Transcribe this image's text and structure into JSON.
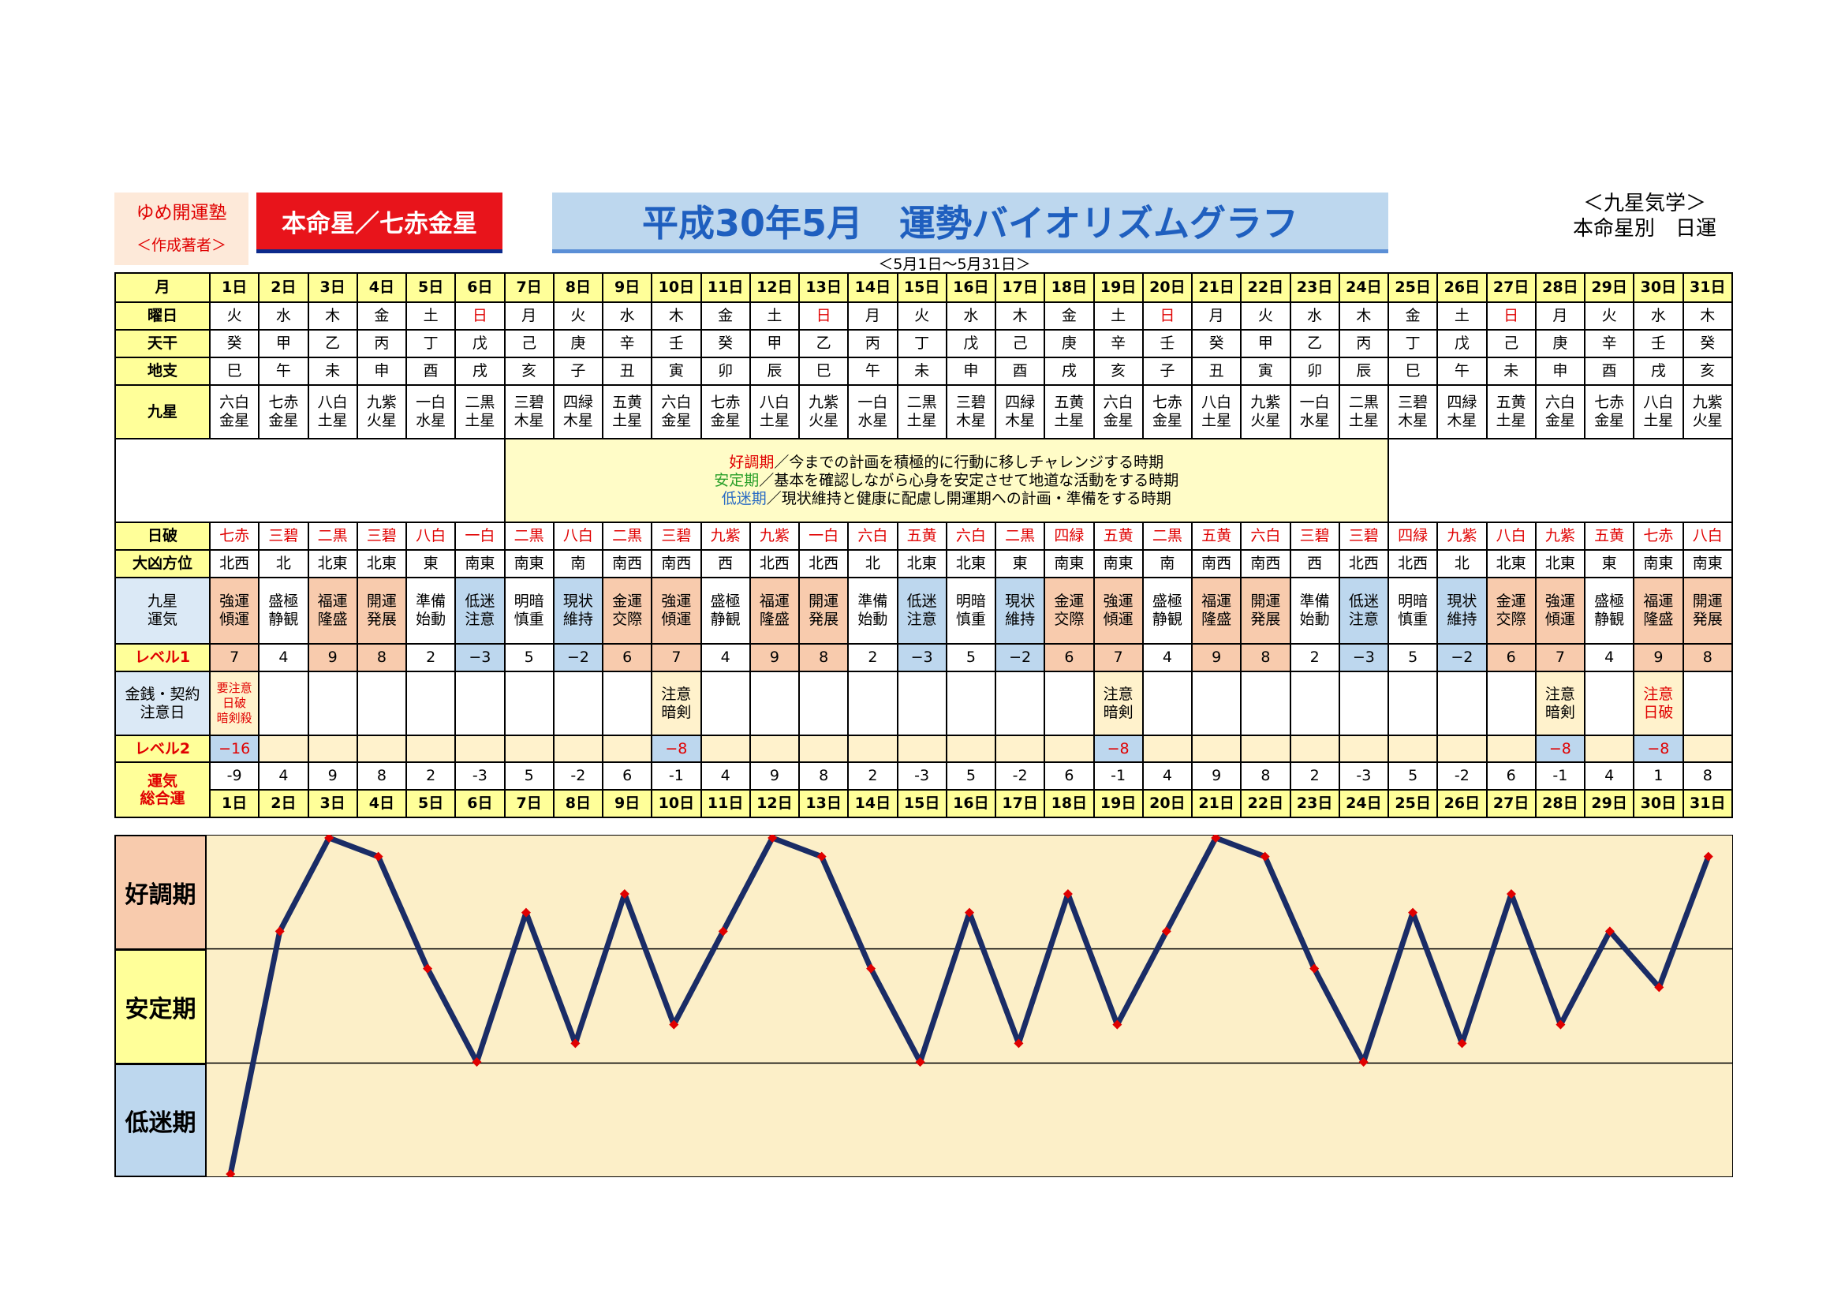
{
  "header": {
    "brand_line1": "ゆめ開運塾",
    "brand_line2": "＜作成著者＞",
    "honmei": "本命星／七赤金星",
    "title": "平成30年5月　運勢バイオリズムグラフ",
    "period": "＜5月1日～5月31日＞",
    "kyusei_line1": "＜九星気学＞",
    "kyusei_line2": "本命星別　日運"
  },
  "labels": {
    "month": "月",
    "weekday": "曜日",
    "tenkan": "天干",
    "chishi": "地支",
    "kyusei": "九星",
    "nippa": "日破",
    "daikyo": "大凶方位",
    "unki_1": "九星",
    "unki_2": "運気",
    "level1": "レベル1",
    "kinsen_1": "金銭・契約",
    "kinsen_2": "注意日",
    "level2": "レベル2",
    "sogo_1": "運気",
    "sogo_2": "総合運"
  },
  "legend": {
    "good_term": "好調期",
    "good_text": "／今までの計画を積極的に行動に移しチャレンジする時期",
    "stable_term": "安定期",
    "stable_text": "／基本を確認しながら心身を安定させて地道な活動をする時期",
    "low_term": "低迷期",
    "low_text": "／現状維持と健康に配慮し開運期への計画・準備をする時期"
  },
  "days": [
    "1日",
    "2日",
    "3日",
    "4日",
    "5日",
    "6日",
    "7日",
    "8日",
    "9日",
    "10日",
    "11日",
    "12日",
    "13日",
    "14日",
    "15日",
    "16日",
    "17日",
    "18日",
    "19日",
    "20日",
    "21日",
    "22日",
    "23日",
    "24日",
    "25日",
    "26日",
    "27日",
    "28日",
    "29日",
    "30日",
    "31日"
  ],
  "weekdays": [
    "火",
    "水",
    "木",
    "金",
    "土",
    "日",
    "月",
    "火",
    "水",
    "木",
    "金",
    "土",
    "日",
    "月",
    "火",
    "水",
    "木",
    "金",
    "土",
    "日",
    "月",
    "火",
    "水",
    "木",
    "金",
    "土",
    "日",
    "月",
    "火",
    "水",
    "木"
  ],
  "tenkan": [
    "癸",
    "甲",
    "乙",
    "丙",
    "丁",
    "戊",
    "己",
    "庚",
    "辛",
    "壬",
    "癸",
    "甲",
    "乙",
    "丙",
    "丁",
    "戊",
    "己",
    "庚",
    "辛",
    "壬",
    "癸",
    "甲",
    "乙",
    "丙",
    "丁",
    "戊",
    "己",
    "庚",
    "辛",
    "壬",
    "癸"
  ],
  "chishi": [
    "巳",
    "午",
    "未",
    "申",
    "酉",
    "戌",
    "亥",
    "子",
    "丑",
    "寅",
    "卯",
    "辰",
    "巳",
    "午",
    "未",
    "申",
    "酉",
    "戌",
    "亥",
    "子",
    "丑",
    "寅",
    "卯",
    "辰",
    "巳",
    "午",
    "未",
    "申",
    "酉",
    "戌",
    "亥"
  ],
  "stars_top": [
    "六白",
    "七赤",
    "八白",
    "九紫",
    "一白",
    "二黒",
    "三碧",
    "四緑",
    "五黄",
    "六白",
    "七赤",
    "八白",
    "九紫",
    "一白",
    "二黒",
    "三碧",
    "四緑",
    "五黄",
    "六白",
    "七赤",
    "八白",
    "九紫",
    "一白",
    "二黒",
    "三碧",
    "四緑",
    "五黄",
    "六白",
    "七赤",
    "八白",
    "九紫"
  ],
  "stars_bottom": [
    "金星",
    "金星",
    "土星",
    "火星",
    "水星",
    "土星",
    "木星",
    "木星",
    "土星",
    "金星",
    "金星",
    "土星",
    "火星",
    "水星",
    "土星",
    "木星",
    "木星",
    "土星",
    "金星",
    "金星",
    "土星",
    "火星",
    "水星",
    "土星",
    "木星",
    "木星",
    "土星",
    "金星",
    "金星",
    "土星",
    "火星"
  ],
  "nippa": [
    "七赤",
    "三碧",
    "二黒",
    "三碧",
    "八白",
    "一白",
    "二黒",
    "八白",
    "二黒",
    "三碧",
    "九紫",
    "九紫",
    "一白",
    "六白",
    "五黄",
    "六白",
    "二黒",
    "四緑",
    "五黄",
    "二黒",
    "五黄",
    "六白",
    "三碧",
    "三碧",
    "四緑",
    "九紫",
    "八白",
    "九紫",
    "五黄",
    "七赤",
    "八白"
  ],
  "daikyo": [
    "北西",
    "北",
    "北東",
    "北東",
    "東",
    "南東",
    "南東",
    "南",
    "南西",
    "南西",
    "西",
    "北西",
    "北西",
    "北",
    "北東",
    "北東",
    "東",
    "南東",
    "南東",
    "南",
    "南西",
    "南西",
    "西",
    "北西",
    "北西",
    "北",
    "北東",
    "北東",
    "東",
    "南東",
    "南東"
  ],
  "unki_top": [
    "強運",
    "盛極",
    "福運",
    "開運",
    "準備",
    "低迷",
    "明暗",
    "現状",
    "金運",
    "強運",
    "盛極",
    "福運",
    "開運",
    "準備",
    "低迷",
    "明暗",
    "現状",
    "金運",
    "強運",
    "盛極",
    "福運",
    "開運",
    "準備",
    "低迷",
    "明暗",
    "現状",
    "金運",
    "強運",
    "盛極",
    "福運",
    "開運"
  ],
  "unki_bottom": [
    "傾運",
    "静観",
    "隆盛",
    "発展",
    "始動",
    "注意",
    "慎重",
    "維持",
    "交際",
    "傾運",
    "静観",
    "隆盛",
    "発展",
    "始動",
    "注意",
    "慎重",
    "維持",
    "交際",
    "傾運",
    "静観",
    "隆盛",
    "発展",
    "始動",
    "注意",
    "慎重",
    "維持",
    "交際",
    "傾運",
    "静観",
    "隆盛",
    "発展"
  ],
  "unki_class": [
    "g",
    "m",
    "g",
    "g",
    "m",
    "b",
    "m",
    "b",
    "g",
    "g",
    "m",
    "g",
    "g",
    "m",
    "b",
    "m",
    "b",
    "g",
    "g",
    "m",
    "g",
    "g",
    "m",
    "b",
    "m",
    "b",
    "g",
    "g",
    "m",
    "g",
    "g"
  ],
  "level1": [
    "7",
    "4",
    "9",
    "8",
    "2",
    "−3",
    "5",
    "−2",
    "6",
    "7",
    "4",
    "9",
    "8",
    "2",
    "−3",
    "5",
    "−2",
    "6",
    "7",
    "4",
    "9",
    "8",
    "2",
    "−3",
    "5",
    "−2",
    "6",
    "7",
    "4",
    "9",
    "8"
  ],
  "kinsen_notes": {
    "d1": [
      "要注意",
      "日破",
      "暗剣殺"
    ],
    "d10": [
      "注意",
      "暗剣"
    ],
    "d19": [
      "注意",
      "暗剣"
    ],
    "d28": [
      "注意",
      "暗剣"
    ],
    "d30": [
      "注意",
      "日破"
    ]
  },
  "level2": [
    "−16",
    "",
    "",
    "",
    "",
    "",
    "",
    "",
    "",
    "−8",
    "",
    "",
    "",
    "",
    "",
    "",
    "",
    "",
    "−8",
    "",
    "",
    "",
    "",
    "",
    "",
    "",
    "",
    "−8",
    "",
    "−8",
    ""
  ],
  "sogo": [
    "-9",
    "4",
    "9",
    "8",
    "2",
    "-3",
    "5",
    "-2",
    "6",
    "-1",
    "4",
    "9",
    "8",
    "2",
    "-3",
    "5",
    "-2",
    "6",
    "-1",
    "4",
    "9",
    "8",
    "2",
    "-3",
    "5",
    "-2",
    "6",
    "-1",
    "4",
    "1",
    "8"
  ],
  "chart_zones": [
    "好調期",
    "安定期",
    "低迷期"
  ],
  "chart_data": {
    "type": "line",
    "x": [
      "1日",
      "2日",
      "3日",
      "4日",
      "5日",
      "6日",
      "7日",
      "8日",
      "9日",
      "10日",
      "11日",
      "12日",
      "13日",
      "14日",
      "15日",
      "16日",
      "17日",
      "18日",
      "19日",
      "20日",
      "21日",
      "22日",
      "23日",
      "24日",
      "25日",
      "26日",
      "27日",
      "28日",
      "29日",
      "30日",
      "31日"
    ],
    "series": [
      {
        "values": [
          -9,
          4,
          9,
          8,
          2,
          -3,
          5,
          -2,
          6,
          -1,
          4,
          9,
          8,
          2,
          -3,
          5,
          -2,
          6,
          -1,
          4,
          9,
          8,
          2,
          -3,
          5,
          -2,
          6,
          -1,
          4,
          1,
          8
        ]
      }
    ],
    "ylim": [
      -9,
      9
    ],
    "grid": true,
    "colors": {
      "line": "#1a2c66",
      "marker": "#e00000"
    }
  }
}
